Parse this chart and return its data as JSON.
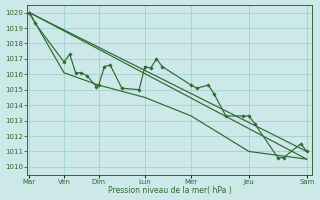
{
  "background_color": "#cce8e8",
  "grid_color": "#99cccc",
  "line_color": "#2d6a2d",
  "ylabel_text": "Pression niveau de la mer( hPa )",
  "ylim": [
    1009.5,
    1020.5
  ],
  "yticks": [
    1010,
    1011,
    1012,
    1013,
    1014,
    1015,
    1016,
    1017,
    1018,
    1019,
    1020
  ],
  "day_labels": [
    "Mar",
    "Ven",
    "Dim",
    "Lun",
    "Mer",
    "Jeu",
    "Sam"
  ],
  "day_positions": [
    0,
    3,
    6,
    10,
    14,
    19,
    24
  ],
  "xlim": [
    -0.2,
    24.5
  ],
  "series1_x": [
    0,
    0.5,
    3.0,
    3.5,
    4.0,
    4.5,
    5.0,
    5.8,
    6.0,
    6.5,
    7.0,
    8.0,
    9.5,
    10.0,
    10.5,
    11.0,
    11.5,
    14.0,
    14.5,
    15.5,
    16.0,
    17.0,
    18.5,
    19.0,
    19.5,
    21.5,
    22.0,
    23.5,
    24.0
  ],
  "series1_y": [
    1020.0,
    1019.3,
    1016.8,
    1017.3,
    1016.1,
    1016.1,
    1015.9,
    1015.2,
    1015.3,
    1016.5,
    1016.6,
    1015.1,
    1015.0,
    1016.5,
    1016.4,
    1017.0,
    1016.5,
    1015.3,
    1015.1,
    1015.3,
    1014.7,
    1013.3,
    1013.3,
    1013.3,
    1012.8,
    1010.6,
    1010.6,
    1011.5,
    1011.0
  ],
  "series2_x": [
    0,
    24
  ],
  "series2_y": [
    1020.0,
    1011.0
  ],
  "series3_x": [
    0,
    24
  ],
  "series3_y": [
    1020.0,
    1010.5
  ],
  "series4_x": [
    0,
    3,
    6,
    10,
    14,
    19,
    24
  ],
  "series4_y": [
    1020.0,
    1016.1,
    1015.3,
    1014.5,
    1013.3,
    1011.0,
    1010.5
  ]
}
